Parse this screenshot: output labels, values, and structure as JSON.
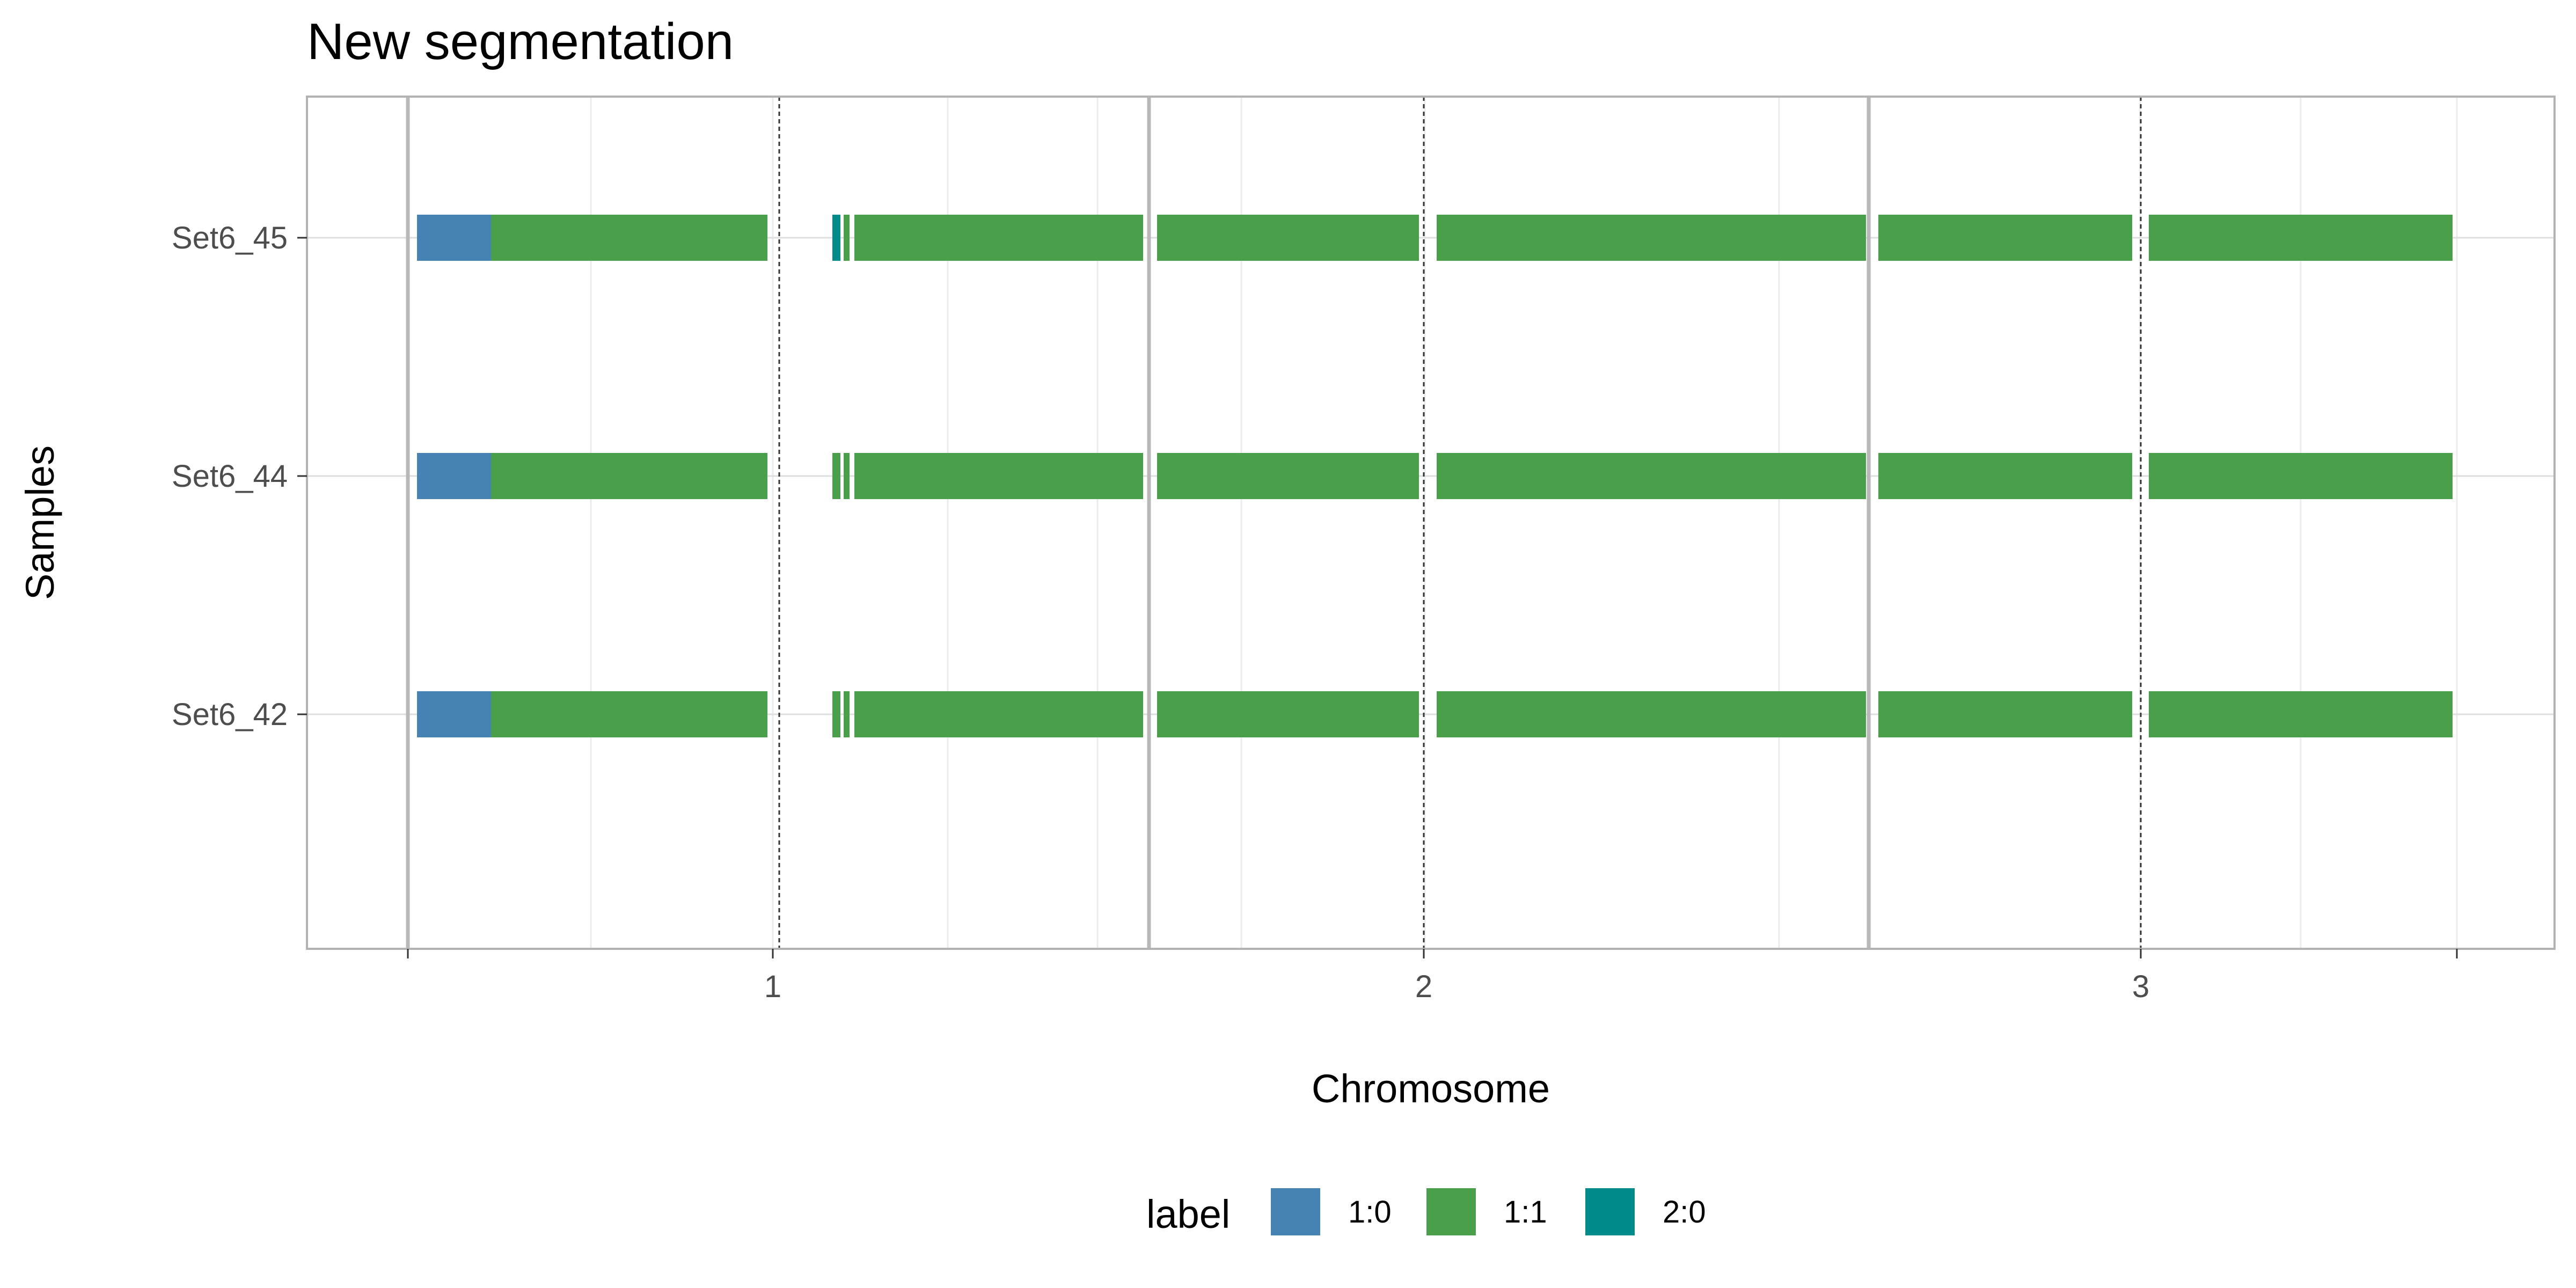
{
  "chart_data": {
    "type": "bar",
    "title": "New segmentation",
    "xlabel": "Chromosome",
    "ylabel": "Samples",
    "x_ticks": [
      "1",
      "2",
      "3"
    ],
    "xlim": [
      0.86,
      3.57
    ],
    "chromosome_boundaries": [
      0.86,
      1.53,
      2.53
    ],
    "samples": [
      "Set6_42",
      "Set6_44",
      "Set6_45"
    ],
    "colors": {
      "1:0": "#4682b4",
      "1:1": "#4a9f4a",
      "2:0": "#008b8b"
    },
    "legend": {
      "title": "label",
      "position": "bottom",
      "entries": [
        "1:0",
        "1:1",
        "2:0"
      ]
    },
    "grid": true,
    "series": [
      {
        "sample": "Set6_45",
        "segments": [
          {
            "start": 0.875,
            "end": 0.98,
            "label": "1:0"
          },
          {
            "start": 0.98,
            "end": 1.365,
            "label": "1:1"
          },
          {
            "start": 1.46,
            "end": 1.47,
            "label": "2:0"
          },
          {
            "start": 1.475,
            "end": 1.482,
            "label": "1:1"
          },
          {
            "start": 1.49,
            "end": 1.895,
            "label": "1:1"
          },
          {
            "start": 1.915,
            "end": 2.3,
            "label": "1:1"
          },
          {
            "start": 2.325,
            "end": 2.95,
            "label": "1:1"
          },
          {
            "start": 2.965,
            "end": 3.34,
            "label": "1:1"
          },
          {
            "start": 3.365,
            "end": 3.79,
            "label": "1:1"
          }
        ]
      },
      {
        "sample": "Set6_44",
        "segments": [
          {
            "start": 0.875,
            "end": 0.98,
            "label": "1:0"
          },
          {
            "start": 0.98,
            "end": 1.365,
            "label": "1:1"
          },
          {
            "start": 1.46,
            "end": 1.47,
            "label": "1:1"
          },
          {
            "start": 1.475,
            "end": 1.482,
            "label": "1:1"
          },
          {
            "start": 1.49,
            "end": 1.895,
            "label": "1:1"
          },
          {
            "start": 1.915,
            "end": 2.3,
            "label": "1:1"
          },
          {
            "start": 2.325,
            "end": 2.95,
            "label": "1:1"
          },
          {
            "start": 2.965,
            "end": 3.34,
            "label": "1:1"
          },
          {
            "start": 3.365,
            "end": 3.79,
            "label": "1:1"
          }
        ]
      },
      {
        "sample": "Set6_42",
        "segments": [
          {
            "start": 0.875,
            "end": 0.98,
            "label": "1:0"
          },
          {
            "start": 0.98,
            "end": 1.365,
            "label": "1:1"
          },
          {
            "start": 1.46,
            "end": 1.47,
            "label": "1:1"
          },
          {
            "start": 1.475,
            "end": 1.482,
            "label": "1:1"
          },
          {
            "start": 1.49,
            "end": 1.895,
            "label": "1:1"
          },
          {
            "start": 1.915,
            "end": 2.3,
            "label": "1:1"
          },
          {
            "start": 2.325,
            "end": 2.95,
            "label": "1:1"
          },
          {
            "start": 2.965,
            "end": 3.34,
            "label": "1:1"
          },
          {
            "start": 3.365,
            "end": 3.79,
            "label": "1:1"
          }
        ]
      }
    ]
  }
}
